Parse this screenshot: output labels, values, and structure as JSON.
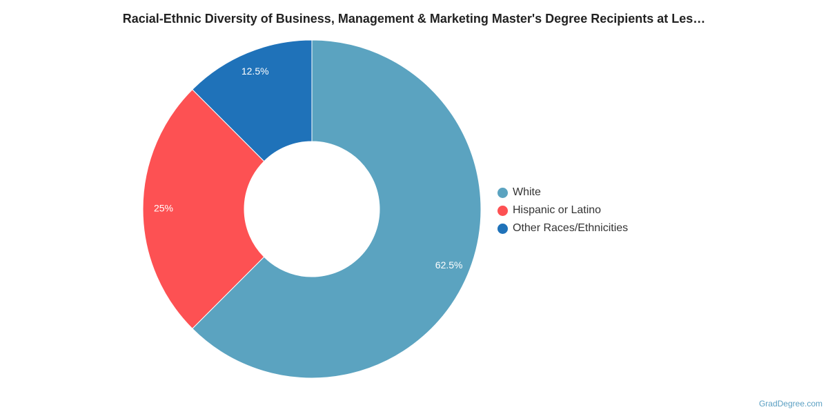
{
  "chart_data": {
    "type": "pie",
    "title": "Racial-Ethnic Diversity of Business, Management & Marketing Master's Degree Recipients at Les…",
    "donut": true,
    "categories": [
      "White",
      "Hispanic or Latino",
      "Other Races/Ethnicities"
    ],
    "values": [
      62.5,
      25,
      12.5
    ],
    "labels": [
      "62.5%",
      "25%",
      "12.5%"
    ],
    "colors": [
      "#5ba3c0",
      "#fd5153",
      "#1f72b9"
    ],
    "legend_position": "right"
  },
  "credit": "GradDegree.com"
}
